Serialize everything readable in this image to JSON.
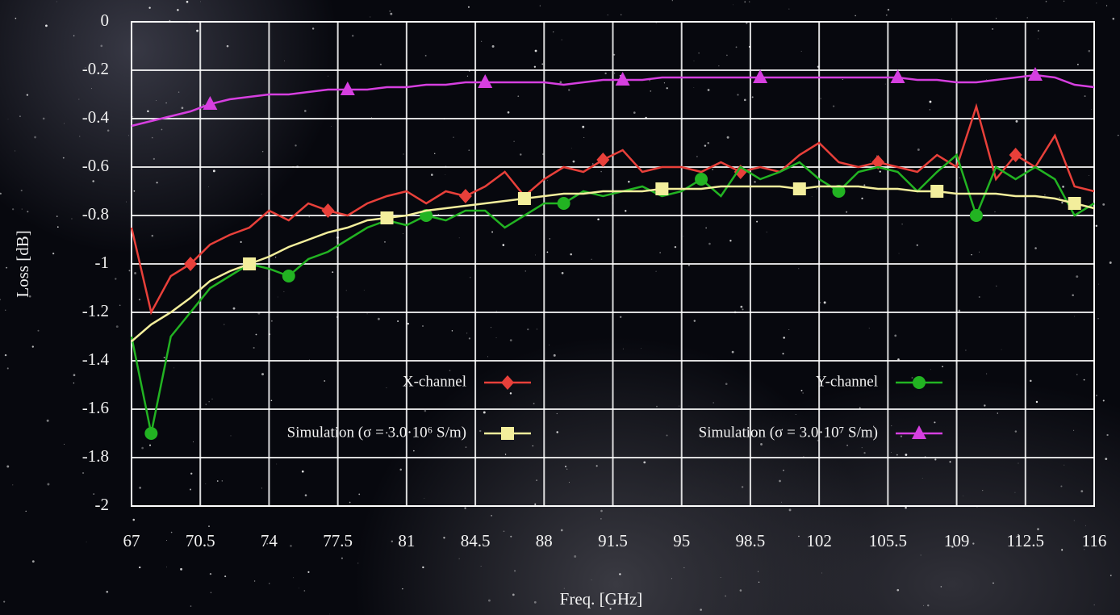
{
  "chart_data": {
    "type": "line",
    "x_label": "Freq. [GHz]",
    "y_label": "Loss [dB]",
    "x": [
      67,
      68,
      69,
      70,
      71,
      72,
      73,
      74,
      75,
      76,
      77,
      78,
      79,
      80,
      81,
      82,
      83,
      84,
      85,
      86,
      87,
      88,
      89,
      90,
      91,
      92,
      93,
      94,
      95,
      96,
      97,
      98,
      99,
      100,
      101,
      102,
      103,
      104,
      105,
      106,
      107,
      108,
      109,
      110,
      111,
      112,
      113,
      114,
      115,
      116
    ],
    "series": [
      {
        "name": "X-channel",
        "color": "#e8403a",
        "marker": "diamond",
        "values": [
          -0.85,
          -1.2,
          -1.05,
          -1.0,
          -0.92,
          -0.88,
          -0.85,
          -0.78,
          -0.82,
          -0.75,
          -0.78,
          -0.8,
          -0.75,
          -0.72,
          -0.7,
          -0.75,
          -0.7,
          -0.72,
          -0.68,
          -0.62,
          -0.72,
          -0.65,
          -0.6,
          -0.62,
          -0.57,
          -0.53,
          -0.62,
          -0.6,
          -0.6,
          -0.62,
          -0.58,
          -0.62,
          -0.6,
          -0.62,
          -0.55,
          -0.5,
          -0.58,
          -0.6,
          -0.58,
          -0.6,
          -0.62,
          -0.55,
          -0.6,
          -0.35,
          -0.65,
          -0.55,
          -0.6,
          -0.47,
          -0.68,
          -0.7
        ]
      },
      {
        "name": "Y-channel",
        "color": "#22b322",
        "marker": "circle",
        "values": [
          -1.3,
          -1.7,
          -1.3,
          -1.2,
          -1.1,
          -1.05,
          -1.0,
          -1.02,
          -1.05,
          -0.98,
          -0.95,
          -0.9,
          -0.85,
          -0.82,
          -0.84,
          -0.8,
          -0.82,
          -0.78,
          -0.78,
          -0.85,
          -0.8,
          -0.75,
          -0.75,
          -0.7,
          -0.72,
          -0.7,
          -0.68,
          -0.72,
          -0.7,
          -0.65,
          -0.72,
          -0.6,
          -0.65,
          -0.62,
          -0.58,
          -0.65,
          -0.7,
          -0.62,
          -0.6,
          -0.62,
          -0.7,
          -0.62,
          -0.55,
          -0.8,
          -0.6,
          -0.65,
          -0.6,
          -0.65,
          -0.8,
          -0.75
        ]
      },
      {
        "name": "Simulation (σ = 3.0·10⁶ S/m)",
        "color": "#f3ee9c",
        "marker": "square",
        "values": [
          -1.32,
          -1.25,
          -1.2,
          -1.14,
          -1.07,
          -1.03,
          -1.0,
          -0.97,
          -0.93,
          -0.9,
          -0.87,
          -0.85,
          -0.82,
          -0.81,
          -0.8,
          -0.78,
          -0.77,
          -0.76,
          -0.75,
          -0.74,
          -0.73,
          -0.72,
          -0.71,
          -0.71,
          -0.7,
          -0.7,
          -0.7,
          -0.69,
          -0.69,
          -0.69,
          -0.68,
          -0.68,
          -0.68,
          -0.68,
          -0.69,
          -0.68,
          -0.68,
          -0.68,
          -0.69,
          -0.69,
          -0.7,
          -0.7,
          -0.71,
          -0.71,
          -0.71,
          -0.72,
          -0.72,
          -0.73,
          -0.75,
          -0.77
        ]
      },
      {
        "name": "Simulation (σ = 3.0·10⁷ S/m)",
        "color": "#d63fe0",
        "marker": "triangle",
        "values": [
          -0.43,
          -0.41,
          -0.39,
          -0.37,
          -0.34,
          -0.32,
          -0.31,
          -0.3,
          -0.3,
          -0.29,
          -0.28,
          -0.28,
          -0.28,
          -0.27,
          -0.27,
          -0.26,
          -0.26,
          -0.25,
          -0.25,
          -0.25,
          -0.25,
          -0.25,
          -0.26,
          -0.25,
          -0.24,
          -0.24,
          -0.24,
          -0.23,
          -0.23,
          -0.23,
          -0.23,
          -0.23,
          -0.23,
          -0.23,
          -0.23,
          -0.23,
          -0.23,
          -0.23,
          -0.23,
          -0.23,
          -0.24,
          -0.24,
          -0.25,
          -0.25,
          -0.24,
          -0.23,
          -0.22,
          -0.23,
          -0.26,
          -0.27
        ]
      }
    ],
    "xlim": [
      67,
      116
    ],
    "ylim": [
      -2,
      0
    ],
    "xticks": [
      67,
      70.5,
      74,
      77.5,
      81,
      84.5,
      88,
      91.5,
      95,
      98.5,
      102,
      105.5,
      109,
      112.5,
      116
    ],
    "yticks": [
      0,
      -0.2,
      -0.4,
      -0.6,
      -0.8,
      -1,
      -1.2,
      -1.4,
      -1.6,
      -1.8,
      -2
    ],
    "grid": true
  }
}
